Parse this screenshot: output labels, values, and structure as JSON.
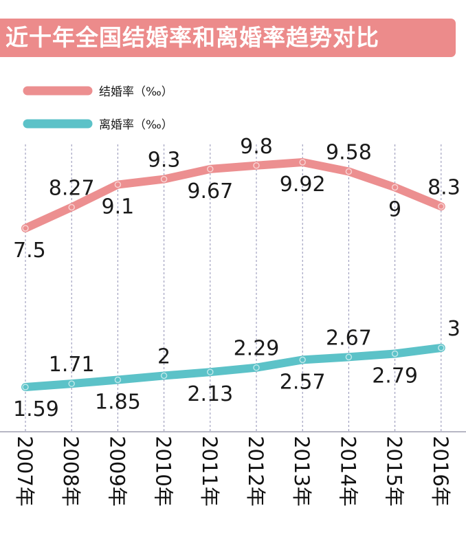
{
  "title": "近十年全国结婚率和离婚率趋势对比",
  "colors": {
    "marriage": "#ec8f90",
    "divorce": "#5cc2c8",
    "title_bg": "#ec8b8b",
    "grid": "#8f8fb3"
  },
  "chart_data": {
    "type": "line",
    "title": "近十年全国结婚率和离婚率趋势对比",
    "unit": "‰",
    "categories": [
      "2007年",
      "2008年",
      "2009年",
      "2010年",
      "2011年",
      "2012年",
      "2013年",
      "2014年",
      "2015年",
      "2016年"
    ],
    "series": [
      {
        "name": "结婚率（‰）",
        "key": "marriage",
        "values": [
          7.5,
          8.27,
          9.1,
          9.3,
          9.67,
          9.8,
          9.92,
          9.58,
          9,
          8.3
        ]
      },
      {
        "name": "离婚率（‰）",
        "key": "divorce",
        "values": [
          1.59,
          1.71,
          1.85,
          2,
          2.13,
          2.29,
          2.57,
          2.67,
          2.79,
          3
        ]
      }
    ],
    "label_positions": {
      "marriage": [
        "below",
        "above",
        "below",
        "above",
        "below",
        "above",
        "below",
        "above",
        "below",
        "above"
      ],
      "divorce": [
        "below",
        "above",
        "below",
        "above",
        "below",
        "above",
        "below",
        "above",
        "below",
        "above"
      ]
    },
    "legend_position": "top-left",
    "grid": "vertical dashed"
  }
}
